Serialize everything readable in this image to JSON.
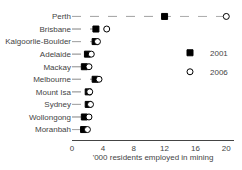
{
  "chart_data": {
    "type": "dot",
    "categories": [
      "Perth",
      "Brisbane",
      "Kalgoorlie-Boulder",
      "Adelaide",
      "Mackay",
      "Melbourne",
      "Mount Isa",
      "Sydney",
      "Wollongong",
      "Moranbah"
    ],
    "series": [
      {
        "name": "2001",
        "color": "black",
        "marker": "square",
        "line_style": "dashed",
        "values": [
          12.0,
          3.1,
          3.0,
          2.0,
          1.6,
          3.0,
          2.1,
          2.1,
          1.6,
          1.5
        ]
      },
      {
        "name": "2006",
        "color": "white",
        "marker": "circle",
        "line_style": "dashed",
        "values": [
          20.0,
          4.5,
          3.3,
          2.5,
          2.2,
          3.5,
          2.3,
          2.4,
          2.2,
          2.0
        ]
      }
    ],
    "xlabel": "'000 residents employed in mining",
    "xlim": [
      0,
      21
    ],
    "xticks": [
      0,
      4,
      8,
      12,
      16,
      20
    ],
    "grid": false,
    "legend": "right"
  }
}
